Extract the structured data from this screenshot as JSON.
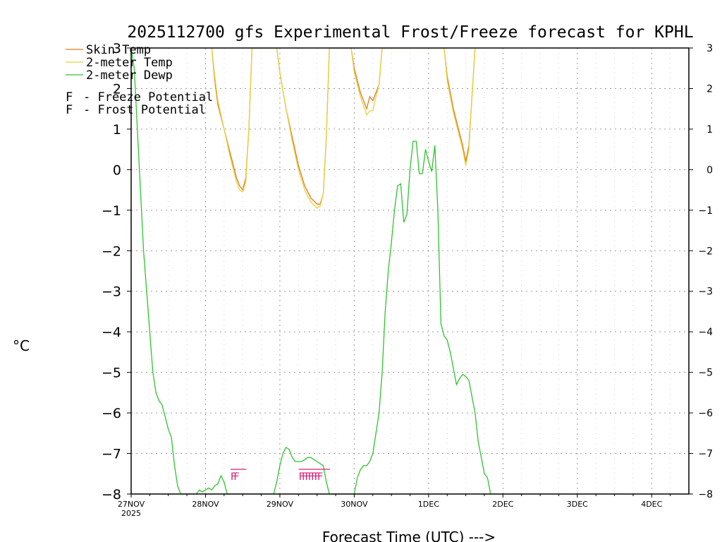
{
  "chart_data": {
    "type": "line",
    "title": "2025112700 gfs Experimental Frost/Freeze forecast for KPHL",
    "xlabel": "Forecast Time (UTC) --->",
    "ylabel": "°C",
    "ylim": [
      -8,
      3
    ],
    "xlim": [
      0,
      180
    ],
    "grid": true,
    "yticks": [
      3,
      2,
      1,
      0,
      -1,
      -2,
      -3,
      -4,
      -5,
      -6,
      -7,
      -8
    ],
    "ytick_labels": [
      "3",
      "2",
      "1",
      "0",
      "−1",
      "−2",
      "−3",
      "−4",
      "−5",
      "−6",
      "−7",
      "−8"
    ],
    "xticks": [
      {
        "hour": 0,
        "label": "27NOV",
        "sub": "2025"
      },
      {
        "hour": 24,
        "label": "28NOV"
      },
      {
        "hour": 48,
        "label": "29NOV"
      },
      {
        "hour": 72,
        "label": "30NOV"
      },
      {
        "hour": 96,
        "label": "1DEC"
      },
      {
        "hour": 120,
        "label": "2DEC"
      },
      {
        "hour": 144,
        "label": "3DEC"
      },
      {
        "hour": 168,
        "label": "4DEC"
      }
    ],
    "series": [
      {
        "name": "Skin Temp",
        "color": "#e07a1f",
        "points": [
          [
            26,
            3.0
          ],
          [
            27,
            2.2
          ],
          [
            28,
            1.6
          ],
          [
            30,
            1.0
          ],
          [
            32,
            0.4
          ],
          [
            34,
            -0.2
          ],
          [
            35,
            -0.4
          ],
          [
            36,
            -0.5
          ],
          [
            37,
            -0.2
          ],
          [
            38,
            1.0
          ],
          [
            39,
            3.0
          ],
          [
            47,
            3.0
          ],
          [
            48,
            2.4
          ],
          [
            50,
            1.5
          ],
          [
            52,
            0.8
          ],
          [
            54,
            0.1
          ],
          [
            56,
            -0.4
          ],
          [
            58,
            -0.7
          ],
          [
            60,
            -0.85
          ],
          [
            61,
            -0.85
          ],
          [
            62,
            -0.6
          ],
          [
            63,
            0.8
          ],
          [
            64,
            3.0
          ],
          [
            71,
            3.0
          ],
          [
            72,
            2.5
          ],
          [
            74,
            1.9
          ],
          [
            76,
            1.5
          ],
          [
            77,
            1.8
          ],
          [
            78,
            1.7
          ],
          [
            79,
            1.9
          ],
          [
            80,
            2.1
          ],
          [
            81,
            3.0
          ],
          [
            101,
            3.0
          ],
          [
            102,
            2.3
          ],
          [
            104,
            1.5
          ],
          [
            106,
            0.9
          ],
          [
            107,
            0.6
          ],
          [
            108,
            0.2
          ],
          [
            109,
            0.6
          ],
          [
            110,
            1.8
          ],
          [
            111,
            3.0
          ]
        ]
      },
      {
        "name": "2-meter Temp",
        "color": "#e8d23c",
        "points": [
          [
            26,
            3.0
          ],
          [
            27,
            2.3
          ],
          [
            28,
            1.7
          ],
          [
            30,
            1.0
          ],
          [
            32,
            0.3
          ],
          [
            34,
            -0.3
          ],
          [
            35,
            -0.5
          ],
          [
            36,
            -0.55
          ],
          [
            37,
            -0.3
          ],
          [
            38,
            1.0
          ],
          [
            39,
            3.0
          ],
          [
            47,
            3.0
          ],
          [
            48,
            2.4
          ],
          [
            50,
            1.5
          ],
          [
            52,
            0.7
          ],
          [
            54,
            0.0
          ],
          [
            56,
            -0.5
          ],
          [
            58,
            -0.8
          ],
          [
            60,
            -0.95
          ],
          [
            61,
            -0.9
          ],
          [
            62,
            -0.6
          ],
          [
            63,
            0.8
          ],
          [
            64,
            3.0
          ],
          [
            71,
            3.0
          ],
          [
            72,
            2.4
          ],
          [
            74,
            1.8
          ],
          [
            76,
            1.35
          ],
          [
            77,
            1.45
          ],
          [
            78,
            1.45
          ],
          [
            79,
            1.8
          ],
          [
            80,
            2.1
          ],
          [
            81,
            3.0
          ],
          [
            101,
            3.0
          ],
          [
            102,
            2.2
          ],
          [
            104,
            1.4
          ],
          [
            106,
            0.8
          ],
          [
            107,
            0.5
          ],
          [
            108,
            0.1
          ],
          [
            109,
            0.5
          ],
          [
            110,
            1.8
          ],
          [
            111,
            3.0
          ]
        ]
      },
      {
        "name": "2-meter Dewp",
        "color": "#2ec42e",
        "points": [
          [
            0,
            3.0
          ],
          [
            1,
            2.5
          ],
          [
            2,
            1.0
          ],
          [
            3,
            -0.5
          ],
          [
            4,
            -2.0
          ],
          [
            5,
            -3.0
          ],
          [
            6,
            -4.0
          ],
          [
            7,
            -5.0
          ],
          [
            8,
            -5.5
          ],
          [
            9,
            -5.7
          ],
          [
            10,
            -5.8
          ],
          [
            11,
            -6.1
          ],
          [
            12,
            -6.4
          ],
          [
            13,
            -6.6
          ],
          [
            14,
            -7.3
          ],
          [
            15,
            -7.8
          ],
          [
            16,
            -8.0
          ],
          [
            21,
            -8.0
          ],
          [
            22,
            -7.9
          ],
          [
            23,
            -7.95
          ],
          [
            24,
            -7.9
          ],
          [
            25,
            -7.85
          ],
          [
            26,
            -7.9
          ],
          [
            27,
            -7.8
          ],
          [
            28,
            -7.75
          ],
          [
            29,
            -7.55
          ],
          [
            30,
            -7.7
          ],
          [
            31,
            -8.0
          ],
          [
            46,
            -8.0
          ],
          [
            47,
            -7.7
          ],
          [
            48,
            -7.3
          ],
          [
            49,
            -7.0
          ],
          [
            50,
            -6.85
          ],
          [
            51,
            -6.9
          ],
          [
            52,
            -7.1
          ],
          [
            53,
            -7.2
          ],
          [
            54,
            -7.2
          ],
          [
            55,
            -7.2
          ],
          [
            56,
            -7.15
          ],
          [
            57,
            -7.1
          ],
          [
            58,
            -7.1
          ],
          [
            59,
            -7.15
          ],
          [
            60,
            -7.2
          ],
          [
            62,
            -7.3
          ],
          [
            63,
            -7.7
          ],
          [
            64,
            -8.0
          ],
          [
            72,
            -8.0
          ],
          [
            73,
            -7.6
          ],
          [
            74,
            -7.4
          ],
          [
            75,
            -7.3
          ],
          [
            76,
            -7.3
          ],
          [
            77,
            -7.2
          ],
          [
            78,
            -7.0
          ],
          [
            79,
            -6.5
          ],
          [
            80,
            -6.0
          ],
          [
            81,
            -5.0
          ],
          [
            82,
            -3.5
          ],
          [
            83,
            -2.5
          ],
          [
            84,
            -1.8
          ],
          [
            85,
            -1.0
          ],
          [
            86,
            -0.4
          ],
          [
            87,
            -0.35
          ],
          [
            88,
            -1.3
          ],
          [
            89,
            -1.1
          ],
          [
            90,
            0.0
          ],
          [
            91,
            0.7
          ],
          [
            92,
            0.7
          ],
          [
            93,
            -0.1
          ],
          [
            94,
            -0.1
          ],
          [
            95,
            0.5
          ],
          [
            96,
            0.2
          ],
          [
            97,
            -0.05
          ],
          [
            98,
            0.6
          ],
          [
            99,
            -1.0
          ],
          [
            100,
            -3.8
          ],
          [
            101,
            -4.1
          ],
          [
            102,
            -4.2
          ],
          [
            103,
            -4.5
          ],
          [
            104,
            -4.9
          ],
          [
            105,
            -5.3
          ],
          [
            106,
            -5.15
          ],
          [
            107,
            -5.05
          ],
          [
            108,
            -5.1
          ],
          [
            109,
            -5.2
          ],
          [
            110,
            -5.6
          ],
          [
            111,
            -6.0
          ],
          [
            112,
            -6.7
          ],
          [
            113,
            -7.1
          ],
          [
            114,
            -7.5
          ],
          [
            115,
            -7.6
          ],
          [
            116,
            -8.0
          ]
        ]
      }
    ],
    "potential_markers": {
      "freeze": {
        "symbol": "F",
        "color": "#d4207a",
        "hours": [
          33,
          34,
          55,
          56,
          57,
          58,
          59,
          60,
          61
        ]
      },
      "frost": {
        "symbol": "F",
        "color": "#4a5ee0",
        "hours": []
      }
    }
  },
  "legend": {
    "items": [
      {
        "label": "Skin Temp",
        "color": "#e07a1f"
      },
      {
        "label": "2-meter Temp",
        "color": "#e8d23c"
      },
      {
        "label": "2-meter Dewp",
        "color": "#2ec42e"
      }
    ],
    "freeze_symbol": "F",
    "freeze_label": "- Freeze Potential",
    "freeze_color": "#d4207a",
    "frost_symbol": "F",
    "frost_label": "- Frost Potential",
    "frost_color": "#4a5ee0"
  }
}
